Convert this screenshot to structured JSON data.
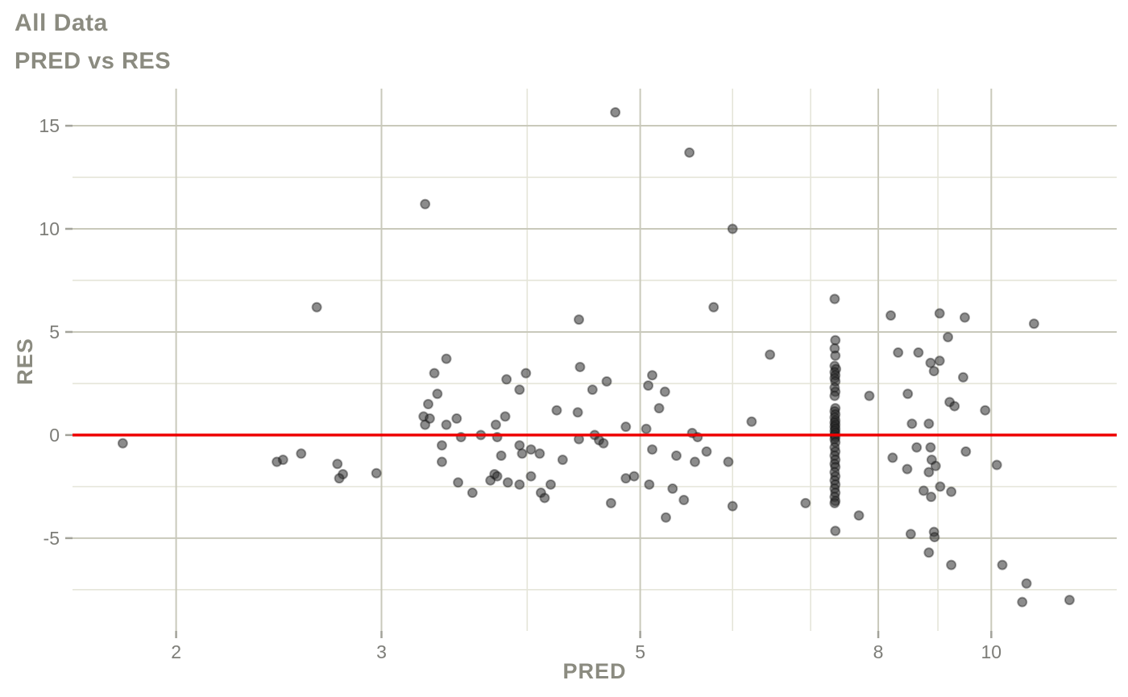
{
  "header": {
    "title": "All Data",
    "subtitle": "PRED vs RES"
  },
  "style": {
    "background": "#ffffff",
    "title_color": "#8b8b80",
    "tick_label_color": "#7d7d78",
    "major_grid_color": "#c9c9bb",
    "minor_grid_color": "#e5e5d9",
    "tick_mark_color": "#a3a39a",
    "point_fill": "#2d2d2d",
    "point_stroke": "#111111",
    "reference_line_color": "#ee0000"
  },
  "chart_data": {
    "type": "scatter",
    "title": "All Data",
    "subtitle": "PRED vs RES",
    "xlabel": "PRED",
    "ylabel": "RES",
    "x_scale": "log10",
    "xlim": [
      1.63,
      12.81
    ],
    "ylim": [
      -9.5,
      16.8
    ],
    "x_ticks": [
      2,
      3,
      5,
      8,
      10
    ],
    "x_minor_gridlines": [
      4,
      6,
      7,
      9
    ],
    "y_ticks": [
      15,
      10,
      5,
      0,
      -5
    ],
    "y_minor_gridlines": [
      12.5,
      7.5,
      2.5,
      -2.5,
      -7.5
    ],
    "grid": true,
    "legend": "none",
    "reference_line": {
      "y": 0
    },
    "points": [
      [
        1.8,
        -0.4
      ],
      [
        2.44,
        -1.3
      ],
      [
        2.47,
        -1.2
      ],
      [
        2.56,
        -0.9
      ],
      [
        2.75,
        -1.4
      ],
      [
        2.78,
        -1.9
      ],
      [
        2.76,
        -2.1
      ],
      [
        2.97,
        -1.85
      ],
      [
        2.64,
        6.2
      ],
      [
        3.27,
        11.2
      ],
      [
        4.76,
        15.65
      ],
      [
        5.51,
        13.7
      ],
      [
        6.0,
        10.0
      ],
      [
        5.78,
        6.2
      ],
      [
        4.43,
        5.6
      ],
      [
        3.41,
        3.7
      ],
      [
        3.33,
        3.0
      ],
      [
        3.84,
        2.7
      ],
      [
        3.99,
        3.0
      ],
      [
        4.44,
        3.3
      ],
      [
        3.94,
        2.2
      ],
      [
        3.35,
        2.0
      ],
      [
        4.55,
        2.2
      ],
      [
        4.68,
        2.6
      ],
      [
        3.29,
        1.5
      ],
      [
        3.26,
        0.9
      ],
      [
        3.3,
        0.8
      ],
      [
        3.27,
        0.5
      ],
      [
        3.83,
        0.9
      ],
      [
        4.24,
        1.2
      ],
      [
        4.42,
        1.1
      ],
      [
        3.41,
        0.5
      ],
      [
        3.48,
        0.8
      ],
      [
        3.76,
        0.5
      ],
      [
        4.86,
        0.4
      ],
      [
        5.06,
        0.3
      ],
      [
        3.51,
        -0.1
      ],
      [
        3.65,
        0.0
      ],
      [
        3.77,
        -0.1
      ],
      [
        4.43,
        -0.2
      ],
      [
        4.57,
        0.0
      ],
      [
        4.61,
        -0.25
      ],
      [
        4.65,
        -0.4
      ],
      [
        3.38,
        -0.5
      ],
      [
        3.94,
        -0.5
      ],
      [
        3.96,
        -0.9
      ],
      [
        4.03,
        -0.7
      ],
      [
        4.1,
        -0.9
      ],
      [
        3.38,
        -1.3
      ],
      [
        4.29,
        -1.2
      ],
      [
        3.8,
        -1.0
      ],
      [
        4.86,
        -2.1
      ],
      [
        3.49,
        -2.3
      ],
      [
        3.59,
        -2.8
      ],
      [
        3.72,
        -2.2
      ],
      [
        3.75,
        -1.9
      ],
      [
        3.77,
        -2.0
      ],
      [
        3.85,
        -2.3
      ],
      [
        3.94,
        -2.4
      ],
      [
        4.03,
        -2.0
      ],
      [
        4.19,
        -2.4
      ],
      [
        4.11,
        -2.8
      ],
      [
        4.14,
        -3.05
      ],
      [
        4.72,
        -3.3
      ],
      [
        4.94,
        -2.0
      ],
      [
        5.08,
        2.4
      ],
      [
        5.12,
        2.9
      ],
      [
        5.25,
        2.1
      ],
      [
        5.19,
        1.3
      ],
      [
        5.54,
        0.1
      ],
      [
        5.6,
        -0.1
      ],
      [
        5.12,
        -0.7
      ],
      [
        5.37,
        -1.0
      ],
      [
        5.7,
        -0.8
      ],
      [
        5.57,
        -1.3
      ],
      [
        5.95,
        -1.3
      ],
      [
        5.09,
        -2.4
      ],
      [
        5.33,
        -2.6
      ],
      [
        5.45,
        -3.15
      ],
      [
        6.0,
        -3.45
      ],
      [
        5.26,
        -4.0
      ],
      [
        6.23,
        0.65
      ],
      [
        6.46,
        3.9
      ],
      [
        6.93,
        -3.3
      ],
      [
        7.86,
        1.9
      ],
      [
        7.7,
        -3.9
      ],
      [
        8.2,
        5.8
      ],
      [
        9.03,
        5.9
      ],
      [
        9.49,
        5.7
      ],
      [
        10.88,
        5.4
      ],
      [
        9.18,
        4.75
      ],
      [
        8.32,
        4.0
      ],
      [
        8.66,
        4.0
      ],
      [
        8.87,
        3.5
      ],
      [
        9.03,
        3.6
      ],
      [
        8.93,
        3.1
      ],
      [
        9.46,
        2.8
      ],
      [
        8.48,
        2.0
      ],
      [
        9.21,
        1.6
      ],
      [
        9.3,
        1.4
      ],
      [
        9.88,
        1.2
      ],
      [
        8.55,
        0.55
      ],
      [
        8.84,
        0.55
      ],
      [
        8.63,
        -0.6
      ],
      [
        8.87,
        -0.6
      ],
      [
        9.51,
        -0.8
      ],
      [
        8.23,
        -1.1
      ],
      [
        8.47,
        -1.65
      ],
      [
        8.89,
        -1.2
      ],
      [
        8.96,
        -1.5
      ],
      [
        8.84,
        -1.8
      ],
      [
        10.11,
        -1.45
      ],
      [
        8.75,
        -2.7
      ],
      [
        9.04,
        -2.5
      ],
      [
        9.24,
        -2.75
      ],
      [
        8.88,
        -3.0
      ],
      [
        8.53,
        -4.8
      ],
      [
        8.93,
        -4.7
      ],
      [
        8.94,
        -4.95
      ],
      [
        8.84,
        -5.7
      ],
      [
        9.24,
        -6.3
      ],
      [
        10.22,
        -6.3
      ],
      [
        10.72,
        -7.2
      ],
      [
        10.63,
        -8.1
      ],
      [
        11.67,
        -8.0
      ],
      [
        7.34,
        6.6
      ],
      [
        7.35,
        4.6
      ],
      [
        7.34,
        4.2
      ],
      [
        7.35,
        3.85
      ],
      [
        7.34,
        3.35
      ],
      [
        7.36,
        3.2
      ],
      [
        7.34,
        3.05
      ],
      [
        7.35,
        2.9
      ],
      [
        7.34,
        2.75
      ],
      [
        7.35,
        2.6
      ],
      [
        7.34,
        2.3
      ],
      [
        7.35,
        2.1
      ],
      [
        7.34,
        1.9
      ],
      [
        7.35,
        1.3
      ],
      [
        7.34,
        1.15
      ],
      [
        7.35,
        1.0
      ],
      [
        7.34,
        0.85
      ],
      [
        7.35,
        0.7
      ],
      [
        7.34,
        0.6
      ],
      [
        7.35,
        0.5
      ],
      [
        7.34,
        0.4
      ],
      [
        7.35,
        0.3
      ],
      [
        7.34,
        0.2
      ],
      [
        7.35,
        0.1
      ],
      [
        7.34,
        0.0
      ],
      [
        7.35,
        -0.1
      ],
      [
        7.34,
        -0.2
      ],
      [
        7.35,
        -0.35
      ],
      [
        7.34,
        -0.6
      ],
      [
        7.35,
        -0.8
      ],
      [
        7.34,
        -1.0
      ],
      [
        7.35,
        -1.2
      ],
      [
        7.34,
        -1.4
      ],
      [
        7.35,
        -1.55
      ],
      [
        7.34,
        -1.8
      ],
      [
        7.35,
        -2.0
      ],
      [
        7.34,
        -2.2
      ],
      [
        7.35,
        -2.4
      ],
      [
        7.34,
        -2.6
      ],
      [
        7.35,
        -2.8
      ],
      [
        7.34,
        -3.0
      ],
      [
        7.35,
        -3.2
      ],
      [
        7.34,
        -3.3
      ],
      [
        7.35,
        -4.65
      ]
    ]
  }
}
